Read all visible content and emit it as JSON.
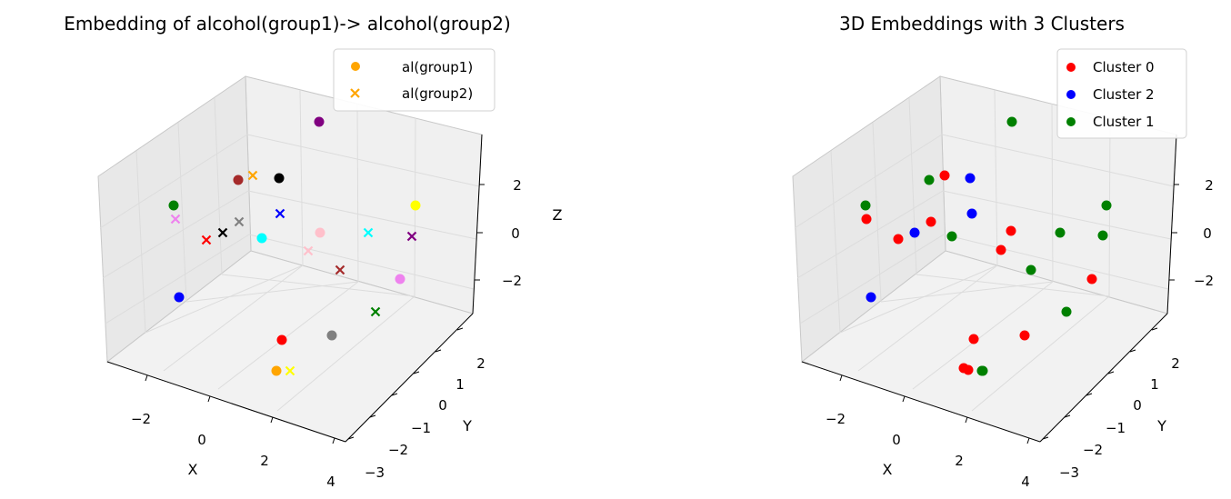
{
  "chart_data": [
    {
      "type": "scatter",
      "title": "Embedding of alcohol(group1)-> alcohol(group2)",
      "xlabel": "X",
      "ylabel": "Y",
      "zlabel": "Z",
      "xticks": [
        "−2",
        "0",
        "2",
        "4"
      ],
      "yticks": [
        "−3",
        "−2",
        "−1",
        "0",
        "1",
        "2"
      ],
      "zticks": [
        "−2",
        "0",
        "2"
      ],
      "legend": {
        "placement": "top-right",
        "entries": [
          {
            "label": "al(group1)",
            "marker": "o",
            "color": "#ffa500"
          },
          {
            "label": "al(group2)",
            "marker": "x",
            "color": "#ffa500"
          }
        ]
      },
      "points": [
        {
          "marker": "o",
          "color": "#800080"
        },
        {
          "marker": "o",
          "color": "#a52a2a"
        },
        {
          "marker": "x",
          "color": "#ffa500"
        },
        {
          "marker": "o",
          "color": "#000000"
        },
        {
          "marker": "o",
          "color": "#ffff00"
        },
        {
          "marker": "o",
          "color": "#008000"
        },
        {
          "marker": "x",
          "color": "#ee82ee"
        },
        {
          "marker": "x",
          "color": "#808080"
        },
        {
          "marker": "x",
          "color": "#000000"
        },
        {
          "marker": "x",
          "color": "#0000ff"
        },
        {
          "marker": "x",
          "color": "#ff0000"
        },
        {
          "marker": "o",
          "color": "#00ffff"
        },
        {
          "marker": "o",
          "color": "#ffc0cb"
        },
        {
          "marker": "x",
          "color": "#00ffff"
        },
        {
          "marker": "x",
          "color": "#800080"
        },
        {
          "marker": "x",
          "color": "#ffc0cb"
        },
        {
          "marker": "x",
          "color": "#a52a2a"
        },
        {
          "marker": "o",
          "color": "#ee82ee"
        },
        {
          "marker": "o",
          "color": "#0000ff"
        },
        {
          "marker": "x",
          "color": "#008000"
        },
        {
          "marker": "o",
          "color": "#ff0000"
        },
        {
          "marker": "o",
          "color": "#808080"
        },
        {
          "marker": "o",
          "color": "#ffa500"
        },
        {
          "marker": "x",
          "color": "#ffff00"
        }
      ]
    },
    {
      "type": "scatter",
      "title": "3D Embeddings with 3 Clusters",
      "xlabel": "X",
      "ylabel": "Y",
      "zlabel": "",
      "xticks": [
        "−2",
        "0",
        "2",
        "4"
      ],
      "yticks": [
        "−3",
        "−2",
        "−1",
        "0",
        "1",
        "2"
      ],
      "zticks": [
        "−2",
        "0",
        "2"
      ],
      "legend": {
        "placement": "top-right",
        "entries": [
          {
            "label": "Cluster 0",
            "marker": "o",
            "color": "#ff0000"
          },
          {
            "label": "Cluster 2",
            "marker": "o",
            "color": "#0000ff"
          },
          {
            "label": "Cluster 1",
            "marker": "o",
            "color": "#008000"
          }
        ]
      },
      "points": [
        {
          "cluster": 1
        },
        {
          "cluster": 1
        },
        {
          "cluster": 0
        },
        {
          "cluster": 2
        },
        {
          "cluster": 1
        },
        {
          "cluster": 0
        },
        {
          "cluster": 0
        },
        {
          "cluster": 2
        },
        {
          "cluster": 1
        },
        {
          "cluster": 0
        },
        {
          "cluster": 0
        },
        {
          "cluster": 2
        },
        {
          "cluster": 1
        },
        {
          "cluster": 0
        },
        {
          "cluster": 1
        },
        {
          "cluster": 1
        },
        {
          "cluster": 0
        },
        {
          "cluster": 1
        },
        {
          "cluster": 1
        },
        {
          "cluster": 0
        },
        {
          "cluster": 2
        },
        {
          "cluster": 1
        },
        {
          "cluster": 0
        },
        {
          "cluster": 0
        },
        {
          "cluster": 0
        },
        {
          "cluster": 1
        }
      ]
    }
  ]
}
